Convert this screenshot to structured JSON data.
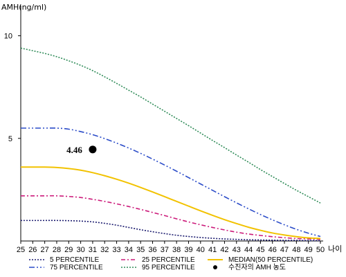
{
  "chart_data": {
    "type": "line",
    "ylabel": "AMH(ng/ml)",
    "xlabel": "나이",
    "xlim": [
      25,
      50
    ],
    "ylim": [
      0,
      11
    ],
    "y_ticks": [
      5,
      10
    ],
    "x": [
      25,
      26,
      27,
      28,
      29,
      30,
      31,
      32,
      33,
      34,
      35,
      36,
      37,
      38,
      39,
      40,
      41,
      42,
      43,
      44,
      45,
      46,
      47,
      48,
      49,
      50
    ],
    "series": [
      {
        "name": "5 PERCENTILE",
        "color": "#1a1a6e",
        "dash": "2,2",
        "values": [
          1.0,
          1.0,
          1.0,
          1.0,
          0.99,
          0.97,
          0.93,
          0.86,
          0.77,
          0.66,
          0.55,
          0.45,
          0.36,
          0.28,
          0.22,
          0.17,
          0.13,
          0.1,
          0.08,
          0.06,
          0.05,
          0.04,
          0.03,
          0.03,
          0.02,
          0.02
        ]
      },
      {
        "name": "25 PERCENTILE",
        "color": "#cc1a7a",
        "dash": "6,3,2,3",
        "values": [
          2.2,
          2.2,
          2.2,
          2.2,
          2.17,
          2.12,
          2.03,
          1.93,
          1.81,
          1.68,
          1.54,
          1.39,
          1.24,
          1.08,
          0.93,
          0.79,
          0.66,
          0.54,
          0.43,
          0.34,
          0.27,
          0.21,
          0.16,
          0.12,
          0.1,
          0.08
        ]
      },
      {
        "name": "MEDIAN(50 PERCENTILE)",
        "color": "#f2c200",
        "dash": "",
        "values": [
          3.6,
          3.6,
          3.6,
          3.58,
          3.53,
          3.45,
          3.33,
          3.18,
          3.01,
          2.82,
          2.61,
          2.39,
          2.16,
          1.93,
          1.7,
          1.47,
          1.25,
          1.04,
          0.85,
          0.67,
          0.52,
          0.39,
          0.29,
          0.21,
          0.15,
          0.12
        ]
      },
      {
        "name": "75 PERCENTILE",
        "color": "#2a4bc8",
        "dash": "8,3,2,3,2,3",
        "values": [
          5.5,
          5.5,
          5.5,
          5.5,
          5.45,
          5.33,
          5.18,
          4.99,
          4.77,
          4.53,
          4.27,
          3.99,
          3.7,
          3.4,
          3.09,
          2.78,
          2.47,
          2.16,
          1.86,
          1.57,
          1.29,
          1.03,
          0.79,
          0.57,
          0.38,
          0.22
        ]
      },
      {
        "name": "95 PERCENTILE",
        "color": "#2e8b57",
        "dash": "2,2",
        "values": [
          9.4,
          9.27,
          9.14,
          8.98,
          8.78,
          8.56,
          8.3,
          8.0,
          7.68,
          7.35,
          7.02,
          6.67,
          6.32,
          5.97,
          5.62,
          5.26,
          4.9,
          4.55,
          4.19,
          3.84,
          3.48,
          3.14,
          2.8,
          2.47,
          2.16,
          1.85
        ]
      }
    ],
    "points": [
      {
        "name": "수진자의 AMH 농도",
        "x": 31,
        "y": 4.46,
        "label": "4.46"
      }
    ],
    "legend_order": [
      "5 PERCENTILE",
      "25 PERCENTILE",
      "MEDIAN(50 PERCENTILE)",
      "75 PERCENTILE",
      "95 PERCENTILE",
      "수진자의 AMH 농도"
    ],
    "legend_position": "bottom",
    "grid": false
  }
}
